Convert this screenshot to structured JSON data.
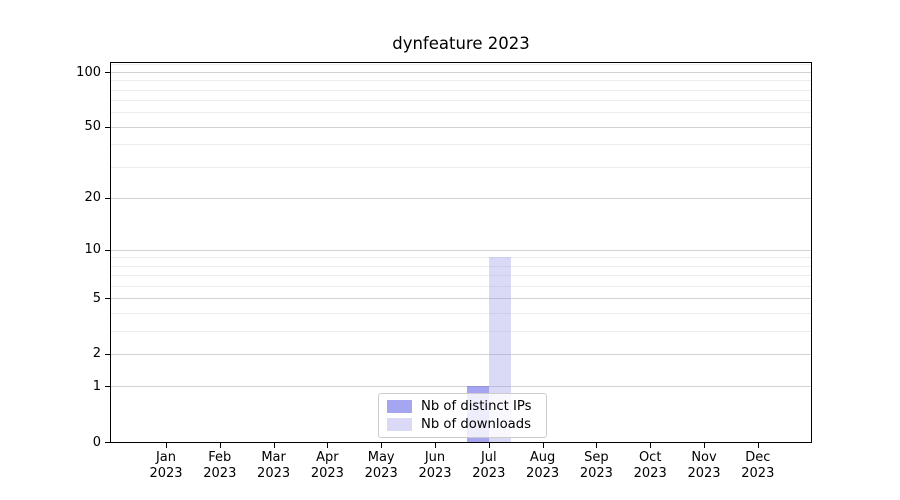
{
  "chart_data": {
    "type": "bar",
    "title": "dynfeature 2023",
    "categories": [
      "Jan 2023",
      "Feb 2023",
      "Mar 2023",
      "Apr 2023",
      "May 2023",
      "Jun 2023",
      "Jul 2023",
      "Aug 2023",
      "Sep 2023",
      "Oct 2023",
      "Nov 2023",
      "Dec 2023"
    ],
    "series": [
      {
        "name": "Nb of distinct IPs",
        "values": [
          0,
          0,
          0,
          0,
          0,
          0,
          1,
          0,
          0,
          0,
          0,
          0
        ],
        "color": "#6464e6",
        "alpha": 0.58
      },
      {
        "name": "Nb of downloads",
        "values": [
          0,
          0,
          0,
          0,
          0,
          0,
          9,
          0,
          0,
          0,
          0,
          0
        ],
        "color": "#9b9be6",
        "alpha": 0.37
      }
    ],
    "yscale": "log1p",
    "ylim": [
      0,
      112
    ],
    "ytick_values": [
      0,
      1,
      2,
      5,
      10,
      20,
      50,
      100
    ],
    "yminor_values": [
      3,
      4,
      6,
      7,
      8,
      9,
      30,
      40,
      60,
      70,
      80,
      90,
      110
    ],
    "grid": "both",
    "legend_position": "lower center",
    "colors": {
      "grid_major": "#d2d2d2",
      "grid_minor": "#ececec",
      "axis": "#000000",
      "legend_border": "#cccccc",
      "background": "#ffffff"
    }
  }
}
